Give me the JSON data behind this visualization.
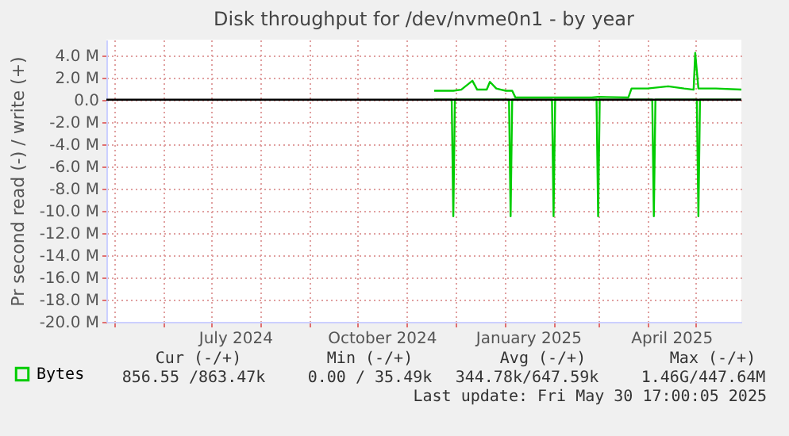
{
  "chart_data": {
    "type": "line",
    "title": "Disk throughput for /dev/nvme0n1 - by year",
    "ylabel": "Pr second read (-) / write (+)",
    "series": [
      {
        "name": "Bytes",
        "color": "#00cc00",
        "x": [
          "2024-11-18",
          "2024-11-30",
          "2024-12-05",
          "2024-12-12",
          "2024-12-15",
          "2024-12-21",
          "2024-12-23",
          "2024-12-27",
          "2024-12-30",
          "2025-01-02",
          "2025-01-06",
          "2025-01-08",
          "2025-02-25",
          "2025-03-01",
          "2025-03-20",
          "2025-03-22",
          "2025-04-01",
          "2025-04-14",
          "2025-04-24",
          "2025-04-30",
          "2025-05-01",
          "2025-05-03",
          "2025-05-14",
          "2025-05-30"
        ],
        "values": [
          0.8,
          0.8,
          0.9,
          1.7,
          0.9,
          0.9,
          1.6,
          1.0,
          0.9,
          0.8,
          0.8,
          0.2,
          0.2,
          0.25,
          0.2,
          1.0,
          1.0,
          1.2,
          1.0,
          0.9,
          4.2,
          1.0,
          1.0,
          0.9
        ]
      },
      {
        "color": "#00cc00",
        "x": [
          "2024-11-18",
          "2024-11-29",
          "2024-11-30",
          "2024-12-01",
          "2025-01-04",
          "2025-01-05",
          "2025-01-06",
          "2025-01-31",
          "2025-02-01",
          "2025-02-02",
          "2025-02-28",
          "2025-03-01",
          "2025-03-02",
          "2025-04-04",
          "2025-04-05",
          "2025-04-06",
          "2025-05-02",
          "2025-05-03",
          "2025-05-04",
          "2025-05-30"
        ],
        "values": [
          0,
          0,
          -10.5,
          0,
          0,
          -10.5,
          0,
          0,
          -10.5,
          0,
          0,
          -10.5,
          0,
          0,
          -10.5,
          0,
          0,
          -10.5,
          0,
          0
        ]
      }
    ],
    "xlim": [
      "2024-04-26",
      "2025-05-30"
    ],
    "xticks": [
      {
        "value": "2024-05-01",
        "label": null
      },
      {
        "value": "2024-06-01",
        "label": null
      },
      {
        "value": "2024-07-01",
        "label": null
      },
      {
        "value": "2024-07-16",
        "label": "July 2024"
      },
      {
        "value": "2024-08-01",
        "label": null
      },
      {
        "value": "2024-09-01",
        "label": null
      },
      {
        "value": "2024-10-01",
        "label": null
      },
      {
        "value": "2024-10-16",
        "label": "October 2024"
      },
      {
        "value": "2024-11-01",
        "label": null
      },
      {
        "value": "2024-12-01",
        "label": null
      },
      {
        "value": "2025-01-01",
        "label": null
      },
      {
        "value": "2025-01-16",
        "label": "January 2025"
      },
      {
        "value": "2025-02-01",
        "label": null
      },
      {
        "value": "2025-03-01",
        "label": null
      },
      {
        "value": "2025-04-01",
        "label": null
      },
      {
        "value": "2025-04-16",
        "label": "April 2025"
      },
      {
        "value": "2025-05-01",
        "label": null
      }
    ],
    "ylim": [
      -20,
      5.4
    ],
    "yticks": [
      {
        "value": -20,
        "label": "-20.0 M"
      },
      {
        "value": -18,
        "label": "-18.0 M"
      },
      {
        "value": -16,
        "label": "-16.0 M"
      },
      {
        "value": -14,
        "label": "-14.0 M"
      },
      {
        "value": -12,
        "label": "-12.0 M"
      },
      {
        "value": -10,
        "label": "-10.0 M"
      },
      {
        "value": -8,
        "label": "-8.0 M"
      },
      {
        "value": -6,
        "label": "-6.0 M"
      },
      {
        "value": -4,
        "label": "-4.0 M"
      },
      {
        "value": -2,
        "label": "-2.0 M"
      },
      {
        "value": 0,
        "label": "0.0"
      },
      {
        "value": 2,
        "label": "2.0 M"
      },
      {
        "value": 4,
        "label": "4.0 M"
      }
    ],
    "ref_lines": [
      {
        "axis": "y",
        "value": 0,
        "color": "#000000"
      }
    ],
    "grid": true,
    "legend": "bottom left",
    "annotations": [
      "Cur (-/+)",
      "Min (-/+)",
      "Avg (-/+)",
      "Max (-/+)",
      "856.55 /863.47k",
      "0.00 / 35.49k",
      "344.78k/647.59k",
      "1.46G/447.64M",
      "Last update: Fri May 30 17:00:05 2025"
    ]
  }
}
